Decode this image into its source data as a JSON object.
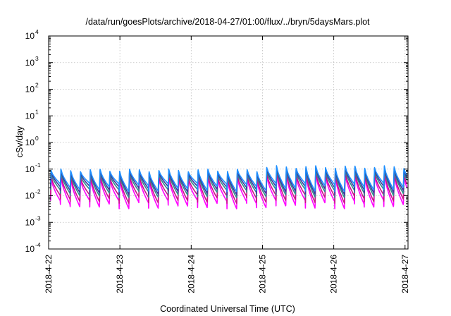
{
  "chart_data": {
    "type": "line",
    "title": "/data/run/goesPlots/archive/2018-04-27/01:00/flux/../bryn/5daysMars.plot",
    "xlabel": "Coordinated Universal Time (UTC)",
    "ylabel": "cSv/day",
    "yscale": "log",
    "ylim": [
      0.0001,
      10000
    ],
    "y_ticks": [
      {
        "value": 0.0001,
        "base": "10",
        "exp": "-4"
      },
      {
        "value": 0.001,
        "base": "10",
        "exp": "-3"
      },
      {
        "value": 0.01,
        "base": "10",
        "exp": "-2"
      },
      {
        "value": 0.1,
        "base": "10",
        "exp": "-1"
      },
      {
        "value": 1,
        "base": "10",
        "exp": "0"
      },
      {
        "value": 10,
        "base": "10",
        "exp": "1"
      },
      {
        "value": 100,
        "base": "10",
        "exp": "2"
      },
      {
        "value": 1000,
        "base": "10",
        "exp": "3"
      },
      {
        "value": 10000,
        "base": "10",
        "exp": "4"
      }
    ],
    "x_ticks": [
      "2018-4-22",
      "2018-4-23",
      "2018-4-24",
      "2018-4-25",
      "2018-4-26",
      "2018-4-27"
    ],
    "xlim": [
      "2018-04-22T00:00",
      "2018-04-27T01:00"
    ],
    "grid": true,
    "legend": "none",
    "pattern": {
      "description_values": "sawtooth spikes, peak then decay",
      "spike_period_hours": 3.3,
      "peak_value_before_2018-04-25": 0.09,
      "peak_value_after_2018-04-25": 0.12,
      "trough_value_lowest_series_typical": 0.005
    },
    "series": [
      {
        "color": "#ff00ff",
        "peak_factor": 0.5,
        "trough_factor": 0.05
      },
      {
        "color": "#c71585",
        "peak_factor": 0.6,
        "trough_factor": 0.08
      },
      {
        "color": "#2e8b8b",
        "peak_factor": 0.75,
        "trough_factor": 0.13
      },
      {
        "color": "#3a3aa0",
        "peak_factor": 0.9,
        "trough_factor": 0.17
      },
      {
        "color": "#1e90ff",
        "peak_factor": 1.0,
        "trough_factor": 0.22
      }
    ]
  }
}
